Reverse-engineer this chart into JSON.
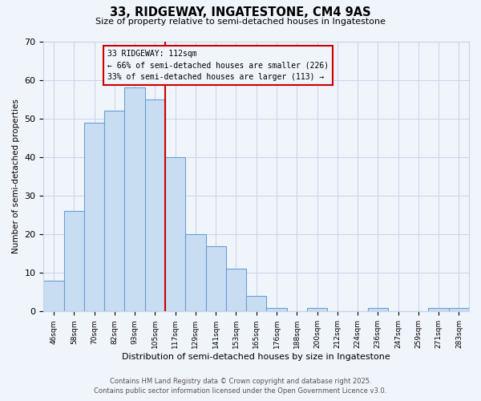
{
  "title": "33, RIDGEWAY, INGATESTONE, CM4 9AS",
  "subtitle": "Size of property relative to semi-detached houses in Ingatestone",
  "xlabel": "Distribution of semi-detached houses by size in Ingatestone",
  "ylabel": "Number of semi-detached properties",
  "bin_labels": [
    "46sqm",
    "58sqm",
    "70sqm",
    "82sqm",
    "93sqm",
    "105sqm",
    "117sqm",
    "129sqm",
    "141sqm",
    "153sqm",
    "165sqm",
    "176sqm",
    "188sqm",
    "200sqm",
    "212sqm",
    "224sqm",
    "236sqm",
    "247sqm",
    "259sqm",
    "271sqm",
    "283sqm"
  ],
  "bar_heights": [
    8,
    26,
    49,
    52,
    58,
    55,
    40,
    20,
    17,
    11,
    4,
    1,
    0,
    1,
    0,
    0,
    1,
    0,
    0,
    1,
    1
  ],
  "bar_color": "#c9ddf2",
  "bar_edge_color": "#6a9fd8",
  "vline_x": 5.5,
  "vline_color": "#cc0000",
  "annotation_title": "33 RIDGEWAY: 112sqm",
  "annotation_line1": "← 66% of semi-detached houses are smaller (226)",
  "annotation_line2": "33% of semi-detached houses are larger (113) →",
  "annotation_box_color": "#cc0000",
  "ylim": [
    0,
    70
  ],
  "yticks": [
    0,
    10,
    20,
    30,
    40,
    50,
    60,
    70
  ],
  "footnote1": "Contains HM Land Registry data © Crown copyright and database right 2025.",
  "footnote2": "Contains public sector information licensed under the Open Government Licence v3.0.",
  "bg_color": "#f0f4fb",
  "grid_color": "#c8d4e8"
}
